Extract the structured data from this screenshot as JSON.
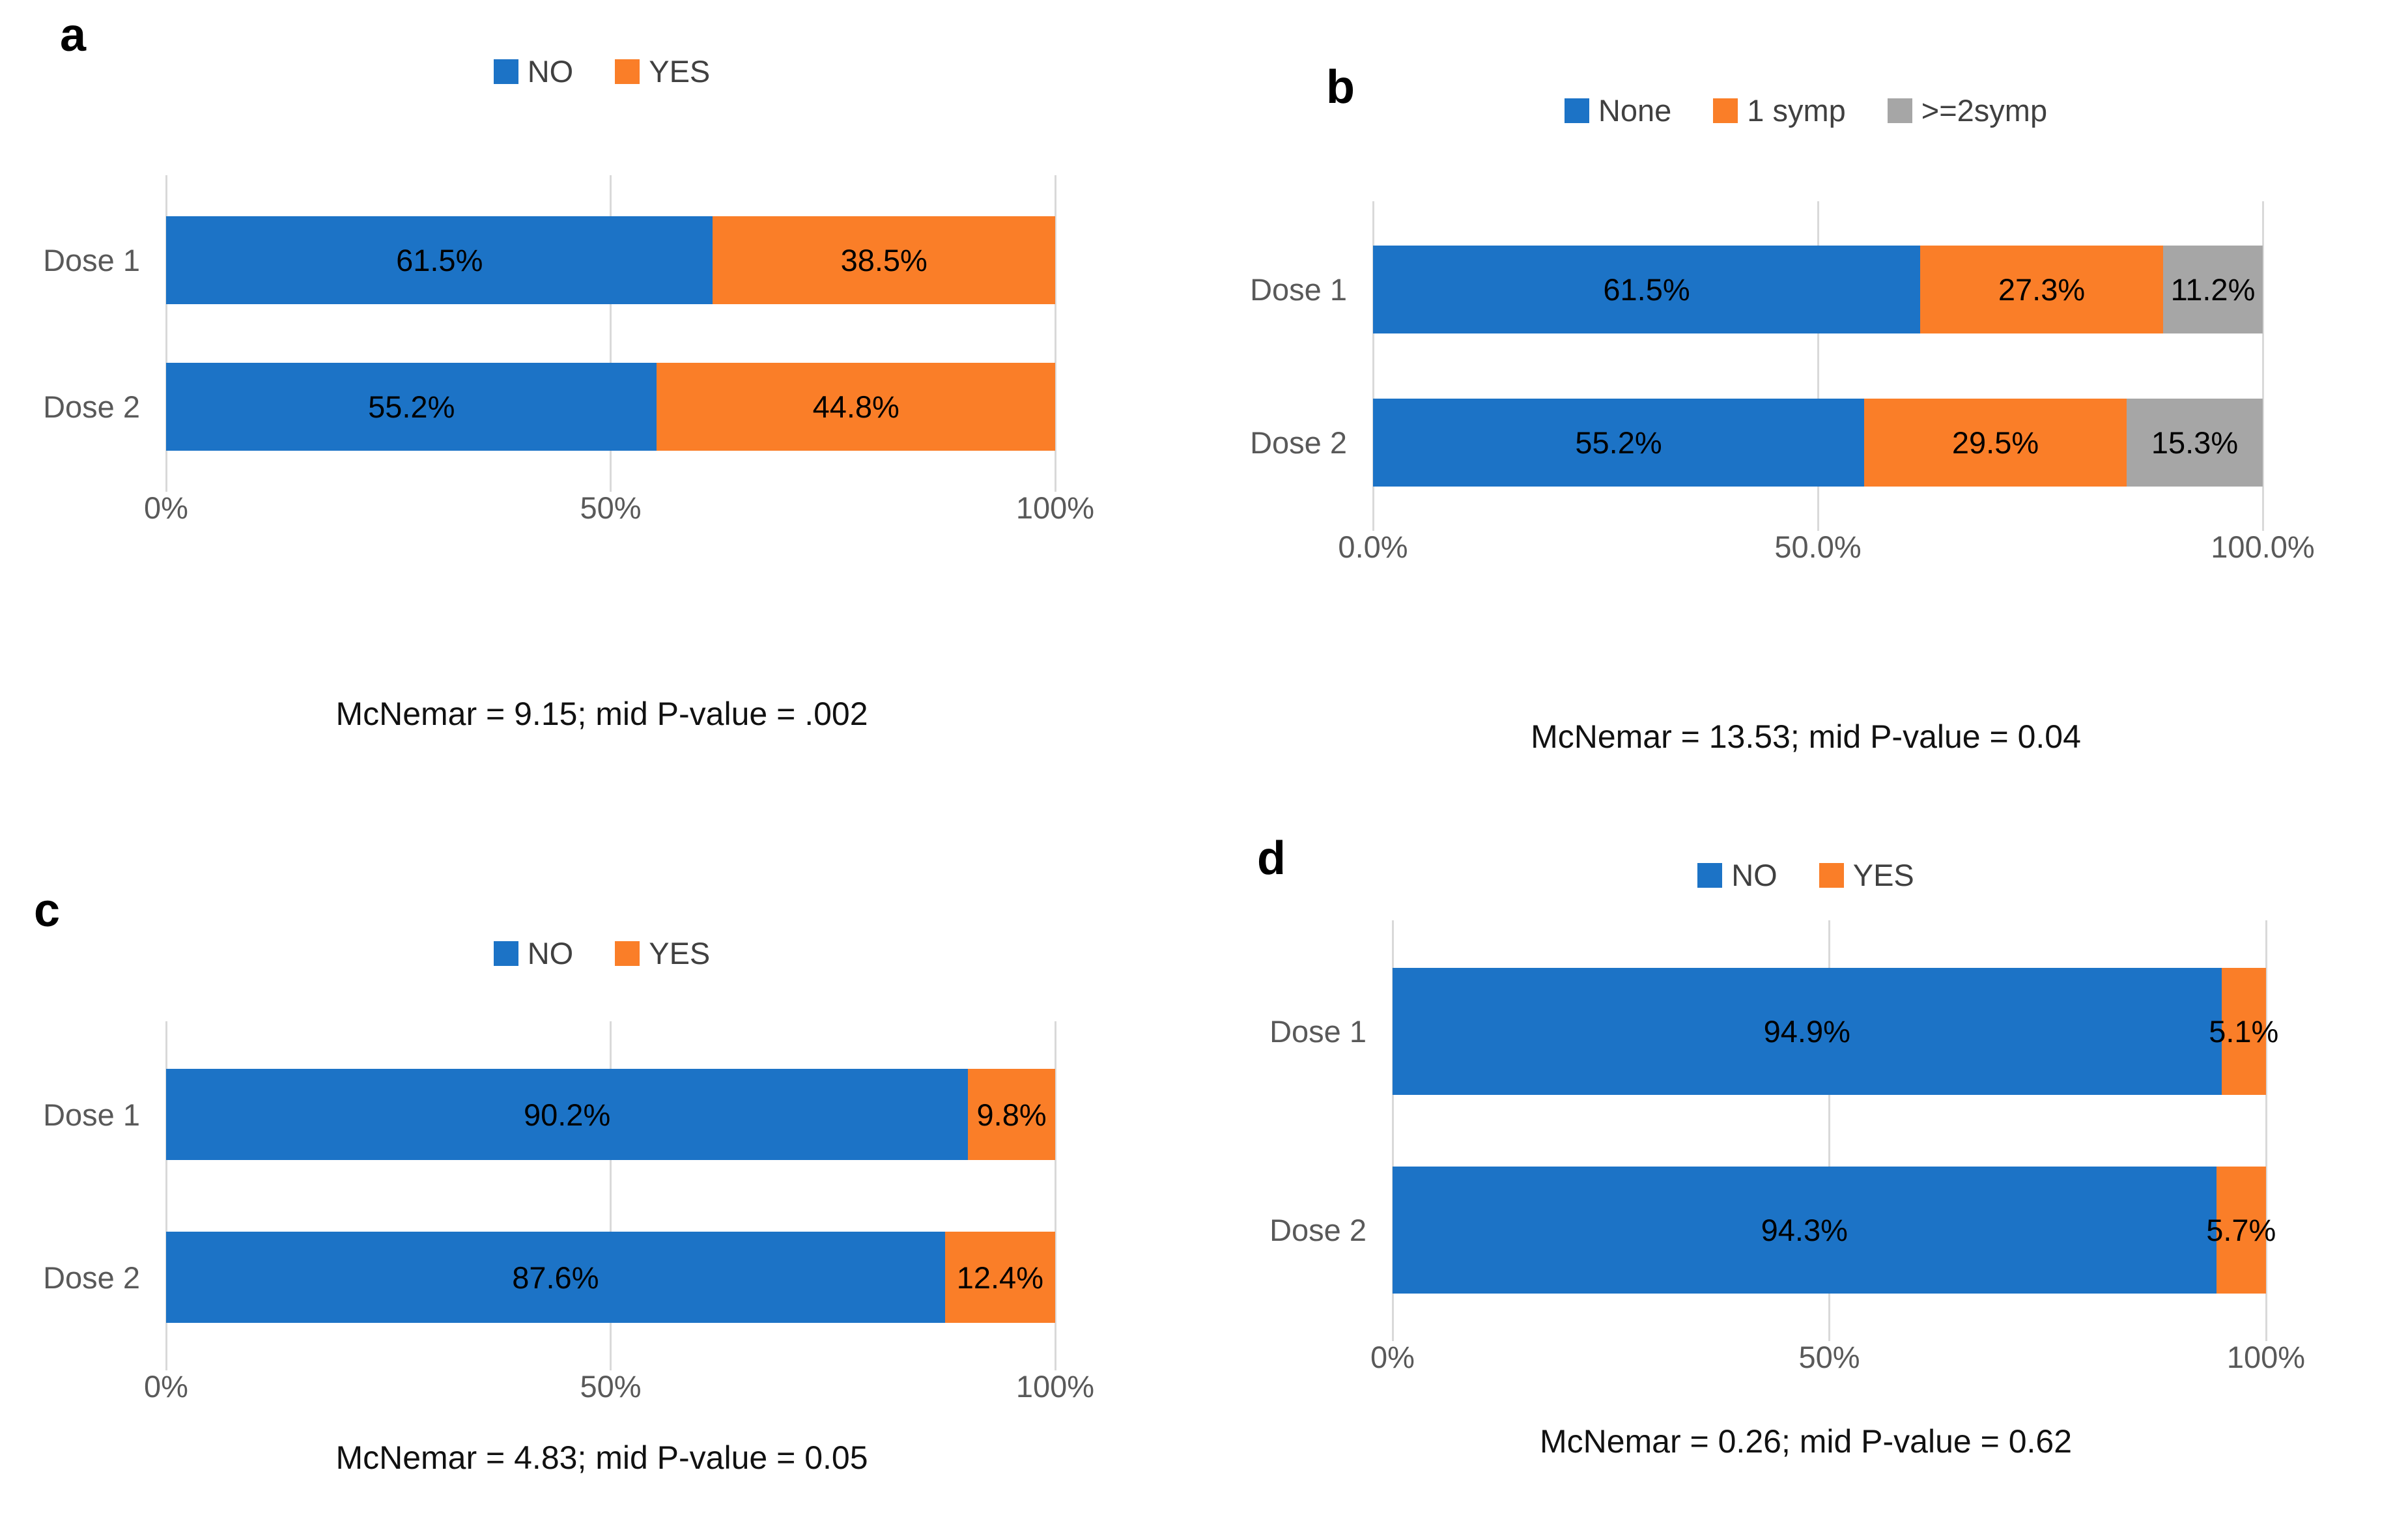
{
  "colors": {
    "blue": "#1C73C6",
    "orange": "#FA7E28",
    "gray": "#A6A6A6",
    "gridline": "#D9D9D9",
    "axis_text": "#595959",
    "data_label_text": "#000000"
  },
  "chart_data": [
    {
      "panel_label": "a",
      "type": "bar",
      "orientation": "horizontal",
      "stacked": true,
      "grid": true,
      "legend_position": "top",
      "xlim": [
        0,
        100
      ],
      "categories": [
        "Dose 1",
        "Dose 2"
      ],
      "series": [
        {
          "name": "NO",
          "color": "#1C73C6",
          "values": [
            61.5,
            55.2
          ]
        },
        {
          "name": "YES",
          "color": "#FA7E28",
          "values": [
            38.5,
            44.8
          ]
        }
      ],
      "data_labels": [
        [
          "61.5%",
          "38.5%"
        ],
        [
          "55.2%",
          "44.8%"
        ]
      ],
      "xticks": [
        {
          "pos": 0,
          "label": "0%"
        },
        {
          "pos": 50,
          "label": "50%"
        },
        {
          "pos": 100,
          "label": "100%"
        }
      ],
      "caption": "McNemar = 9.15; mid P-value = .002"
    },
    {
      "panel_label": "b",
      "type": "bar",
      "orientation": "horizontal",
      "stacked": true,
      "grid": true,
      "legend_position": "top",
      "xlim": [
        0,
        100
      ],
      "categories": [
        "Dose 1",
        "Dose 2"
      ],
      "series": [
        {
          "name": "None",
          "color": "#1C73C6",
          "values": [
            61.5,
            55.2
          ]
        },
        {
          "name": "1 symp",
          "color": "#FA7E28",
          "values": [
            27.3,
            29.5
          ]
        },
        {
          "name": ">=2symp",
          "color": "#A6A6A6",
          "values": [
            11.2,
            15.3
          ]
        }
      ],
      "data_labels": [
        [
          "61.5%",
          "27.3%",
          "11.2%"
        ],
        [
          "55.2%",
          "29.5%",
          "15.3%"
        ]
      ],
      "xticks": [
        {
          "pos": 0,
          "label": "0.0%"
        },
        {
          "pos": 50,
          "label": "50.0%"
        },
        {
          "pos": 100,
          "label": "100.0%"
        }
      ],
      "caption": "McNemar = 13.53; mid P-value = 0.04"
    },
    {
      "panel_label": "c",
      "type": "bar",
      "orientation": "horizontal",
      "stacked": true,
      "grid": true,
      "legend_position": "top",
      "xlim": [
        0,
        100
      ],
      "categories": [
        "Dose 1",
        "Dose 2"
      ],
      "series": [
        {
          "name": "NO",
          "color": "#1C73C6",
          "values": [
            90.2,
            87.6
          ]
        },
        {
          "name": "YES",
          "color": "#FA7E28",
          "values": [
            9.8,
            12.4
          ]
        }
      ],
      "data_labels": [
        [
          "90.2%",
          "9.8%"
        ],
        [
          "87.6%",
          "12.4%"
        ]
      ],
      "xticks": [
        {
          "pos": 0,
          "label": "0%"
        },
        {
          "pos": 50,
          "label": "50%"
        },
        {
          "pos": 100,
          "label": "100%"
        }
      ],
      "caption": "McNemar = 4.83; mid P-value = 0.05"
    },
    {
      "panel_label": "d",
      "type": "bar",
      "orientation": "horizontal",
      "stacked": true,
      "grid": true,
      "legend_position": "top",
      "xlim": [
        0,
        100
      ],
      "categories": [
        "Dose 1",
        "Dose 2"
      ],
      "series": [
        {
          "name": "NO",
          "color": "#1C73C6",
          "values": [
            94.9,
            94.3
          ]
        },
        {
          "name": "YES",
          "color": "#FA7E28",
          "values": [
            5.1,
            5.7
          ]
        }
      ],
      "data_labels": [
        [
          "94.9%",
          "5.1%"
        ],
        [
          "94.3%",
          "5.7%"
        ]
      ],
      "xticks": [
        {
          "pos": 0,
          "label": "0%"
        },
        {
          "pos": 50,
          "label": "50%"
        },
        {
          "pos": 100,
          "label": "100%"
        }
      ],
      "caption": "McNemar = 0.26; mid P-value = 0.62"
    }
  ]
}
